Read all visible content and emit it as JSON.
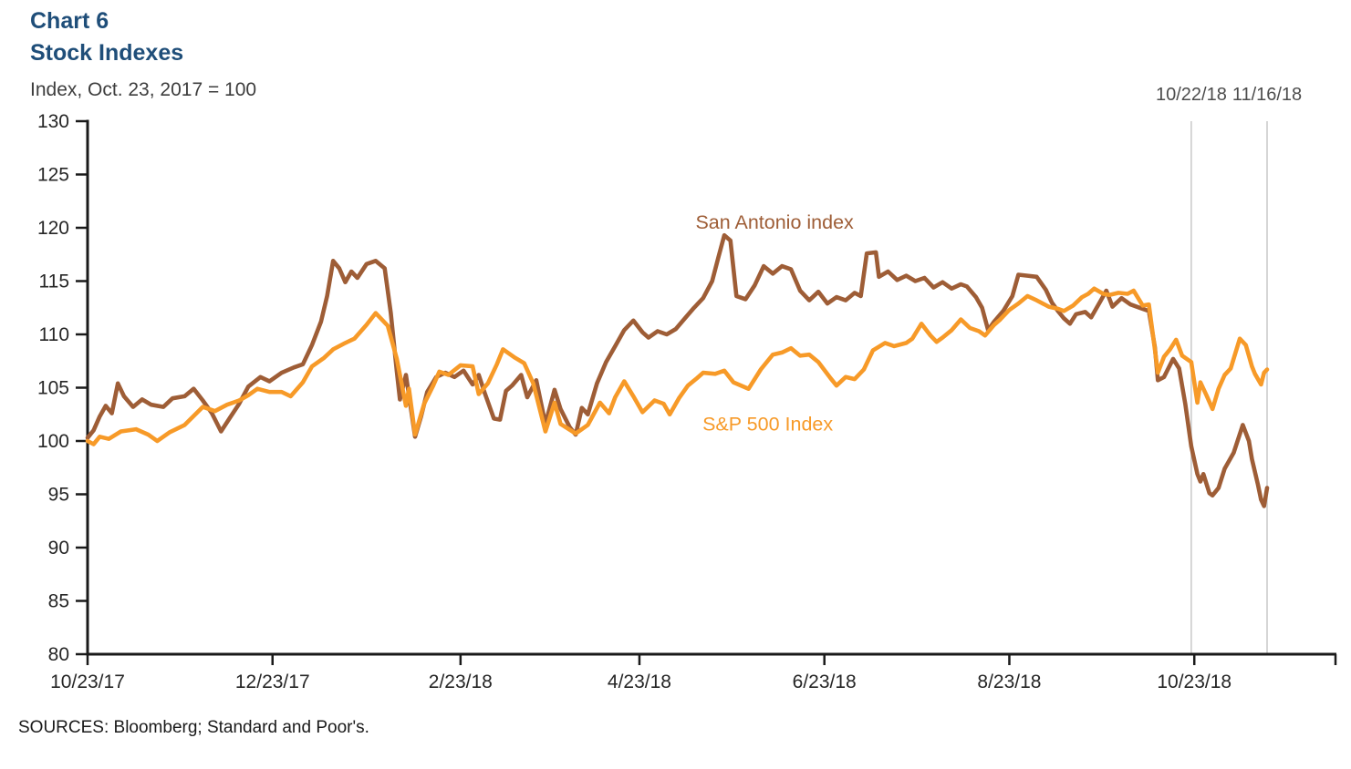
{
  "header": {
    "title_line1": "Chart 6",
    "title_line2": "Stock Indexes",
    "subtitle": "Index, Oct. 23, 2017 = 100",
    "title_color": "#1F4E79"
  },
  "source_line": "SOURCES: Bloomberg; Standard and Poor's.",
  "chart_data": {
    "type": "line",
    "title": "Chart 6 - Stock Indexes",
    "xlabel": "",
    "ylabel": "Index, Oct. 23, 2017 = 100",
    "ylim": [
      80,
      130
    ],
    "y_ticks": [
      80,
      85,
      90,
      95,
      100,
      105,
      110,
      115,
      120,
      125,
      130
    ],
    "grid": false,
    "legend_position": "inline-labels",
    "x_domain_days": [
      0,
      389
    ],
    "x_base_date": "10/23/17",
    "x_ticks": [
      {
        "label": "10/23/17",
        "day": 0
      },
      {
        "label": "12/23/17",
        "day": 61
      },
      {
        "label": "2/23/18",
        "day": 123
      },
      {
        "label": "4/23/18",
        "day": 182
      },
      {
        "label": "6/23/18",
        "day": 243
      },
      {
        "label": "8/23/18",
        "day": 304
      },
      {
        "label": "10/23/18",
        "day": 365
      }
    ],
    "reference_lines": [
      {
        "label": "10/22/18",
        "day": 364
      },
      {
        "label": "11/16/18",
        "day": 389
      }
    ],
    "colors": {
      "axis": "#1a1a1a",
      "tick_label": "#262626",
      "ref_line": "#c9c9c9",
      "ref_label": "#4d4d4d"
    },
    "series": [
      {
        "name": "San Antonio index",
        "color": "#9E5D36",
        "label": {
          "text": "San Antonio index",
          "x_day": 200.5,
          "value": 119.9
        },
        "points": [
          [
            0,
            100.3
          ],
          [
            2,
            101
          ],
          [
            4,
            102.3
          ],
          [
            6,
            103.3
          ],
          [
            8,
            102.6
          ],
          [
            10,
            105.4
          ],
          [
            12,
            104.2
          ],
          [
            15,
            103.2
          ],
          [
            18,
            103.9
          ],
          [
            21,
            103.4
          ],
          [
            25,
            103.2
          ],
          [
            28,
            104
          ],
          [
            32,
            104.2
          ],
          [
            35,
            104.9
          ],
          [
            38,
            103.8
          ],
          [
            41,
            102.6
          ],
          [
            44,
            100.9
          ],
          [
            47,
            102.2
          ],
          [
            50,
            103.5
          ],
          [
            53,
            105.1
          ],
          [
            57,
            106
          ],
          [
            60,
            105.6
          ],
          [
            64,
            106.4
          ],
          [
            68,
            106.9
          ],
          [
            71,
            107.2
          ],
          [
            74,
            109
          ],
          [
            77,
            111.2
          ],
          [
            79,
            113.6
          ],
          [
            81,
            116.9
          ],
          [
            83,
            116.2
          ],
          [
            85,
            114.9
          ],
          [
            87,
            115.9
          ],
          [
            89,
            115.3
          ],
          [
            92,
            116.6
          ],
          [
            95,
            116.9
          ],
          [
            98,
            116.2
          ],
          [
            100,
            112
          ],
          [
            102,
            106.5
          ],
          [
            103,
            103.9
          ],
          [
            105,
            106.2
          ],
          [
            108,
            100.4
          ],
          [
            110,
            102.3
          ],
          [
            112,
            104.6
          ],
          [
            115,
            106
          ],
          [
            118,
            106.4
          ],
          [
            121,
            106
          ],
          [
            124,
            106.6
          ],
          [
            127,
            105.3
          ],
          [
            129,
            106.2
          ],
          [
            131,
            104.5
          ],
          [
            134,
            102.1
          ],
          [
            136,
            102
          ],
          [
            138,
            104.7
          ],
          [
            140,
            105.2
          ],
          [
            143,
            106.2
          ],
          [
            145,
            104.1
          ],
          [
            148,
            105.7
          ],
          [
            151,
            101.6
          ],
          [
            154,
            104.8
          ],
          [
            156,
            103
          ],
          [
            159,
            101.3
          ],
          [
            161,
            100.6
          ],
          [
            163,
            103.1
          ],
          [
            165,
            102.5
          ],
          [
            168,
            105.4
          ],
          [
            171,
            107.4
          ],
          [
            174,
            108.9
          ],
          [
            177,
            110.4
          ],
          [
            180,
            111.3
          ],
          [
            183,
            110.2
          ],
          [
            185,
            109.7
          ],
          [
            188,
            110.3
          ],
          [
            191,
            110
          ],
          [
            194,
            110.5
          ],
          [
            197,
            111.5
          ],
          [
            200,
            112.5
          ],
          [
            203,
            113.4
          ],
          [
            206,
            115
          ],
          [
            208,
            117.2
          ],
          [
            210,
            119.3
          ],
          [
            212,
            118.8
          ],
          [
            214,
            113.6
          ],
          [
            217,
            113.3
          ],
          [
            220,
            114.6
          ],
          [
            223,
            116.4
          ],
          [
            226,
            115.7
          ],
          [
            229,
            116.4
          ],
          [
            232,
            116.1
          ],
          [
            235,
            114.1
          ],
          [
            238,
            113.2
          ],
          [
            241,
            114
          ],
          [
            244,
            112.9
          ],
          [
            247,
            113.5
          ],
          [
            250,
            113.2
          ],
          [
            253,
            113.9
          ],
          [
            255,
            113.6
          ],
          [
            257,
            117.6
          ],
          [
            260,
            117.7
          ],
          [
            261,
            115.4
          ],
          [
            264,
            115.9
          ],
          [
            267,
            115.1
          ],
          [
            270,
            115.5
          ],
          [
            273,
            115
          ],
          [
            276,
            115.3
          ],
          [
            279,
            114.4
          ],
          [
            282,
            114.9
          ],
          [
            285,
            114.3
          ],
          [
            288,
            114.7
          ],
          [
            290,
            114.5
          ],
          [
            293,
            113.5
          ],
          [
            295,
            112.5
          ],
          [
            297,
            110.4
          ],
          [
            299,
            111.2
          ],
          [
            302,
            112.2
          ],
          [
            305,
            113.6
          ],
          [
            307,
            115.6
          ],
          [
            310,
            115.5
          ],
          [
            313,
            115.4
          ],
          [
            316,
            114.2
          ],
          [
            318,
            113
          ],
          [
            320,
            112.2
          ],
          [
            322,
            111.5
          ],
          [
            324,
            111
          ],
          [
            326,
            111.9
          ],
          [
            329,
            112.1
          ],
          [
            331,
            111.6
          ],
          [
            334,
            113.1
          ],
          [
            336,
            114.1
          ],
          [
            338,
            112.6
          ],
          [
            341,
            113.4
          ],
          [
            344,
            112.8
          ],
          [
            347,
            112.5
          ],
          [
            350,
            112.2
          ],
          [
            352,
            108.8
          ],
          [
            353,
            105.7
          ],
          [
            355,
            106
          ],
          [
            358,
            107.7
          ],
          [
            360,
            106.8
          ],
          [
            362,
            103.5
          ],
          [
            364,
            99.5
          ],
          [
            366,
            96.9
          ],
          [
            367,
            96.2
          ],
          [
            368,
            96.9
          ],
          [
            370,
            95.1
          ],
          [
            371,
            94.9
          ],
          [
            373,
            95.6
          ],
          [
            375,
            97.4
          ],
          [
            378,
            98.9
          ],
          [
            381,
            101.5
          ],
          [
            383,
            100
          ],
          [
            384,
            98.3
          ],
          [
            386,
            95.9
          ],
          [
            387,
            94.5
          ],
          [
            388,
            93.9
          ],
          [
            389,
            95.6
          ]
        ]
      },
      {
        "name": "S&P 500 Index",
        "color": "#F79A28",
        "label": {
          "text": "S&P 500 Index",
          "x_day": 202.8,
          "value": 101.0
        },
        "points": [
          [
            0,
            100
          ],
          [
            2,
            99.7
          ],
          [
            4,
            100.4
          ],
          [
            7,
            100.2
          ],
          [
            11,
            100.9
          ],
          [
            16,
            101.1
          ],
          [
            20,
            100.6
          ],
          [
            23,
            100
          ],
          [
            27,
            100.8
          ],
          [
            32,
            101.5
          ],
          [
            38,
            103.2
          ],
          [
            42,
            102.8
          ],
          [
            46,
            103.4
          ],
          [
            50,
            103.8
          ],
          [
            53,
            104.3
          ],
          [
            56,
            104.9
          ],
          [
            60,
            104.6
          ],
          [
            64,
            104.6
          ],
          [
            67,
            104.2
          ],
          [
            71,
            105.5
          ],
          [
            74,
            107
          ],
          [
            78,
            107.8
          ],
          [
            81,
            108.6
          ],
          [
            85,
            109.2
          ],
          [
            88,
            109.6
          ],
          [
            92,
            110.9
          ],
          [
            95,
            112
          ],
          [
            99,
            110.8
          ],
          [
            102,
            107.7
          ],
          [
            105,
            103.3
          ],
          [
            106,
            104.9
          ],
          [
            108,
            100.6
          ],
          [
            111,
            103.5
          ],
          [
            114,
            105.2
          ],
          [
            116,
            106.5
          ],
          [
            119,
            106.2
          ],
          [
            123,
            107.1
          ],
          [
            127,
            107
          ],
          [
            129,
            104.4
          ],
          [
            132,
            105.4
          ],
          [
            135,
            107.2
          ],
          [
            137,
            108.6
          ],
          [
            141,
            107.8
          ],
          [
            144,
            107.3
          ],
          [
            147,
            105.4
          ],
          [
            151,
            100.9
          ],
          [
            154,
            103.6
          ],
          [
            156,
            101.6
          ],
          [
            161,
            100.7
          ],
          [
            165,
            101.5
          ],
          [
            169,
            103.6
          ],
          [
            172,
            102.6
          ],
          [
            174,
            104.1
          ],
          [
            177,
            105.6
          ],
          [
            180,
            104.2
          ],
          [
            183,
            102.7
          ],
          [
            187,
            103.8
          ],
          [
            190,
            103.5
          ],
          [
            192,
            102.5
          ],
          [
            195,
            104
          ],
          [
            198,
            105.2
          ],
          [
            201,
            105.9
          ],
          [
            203,
            106.4
          ],
          [
            207,
            106.3
          ],
          [
            210,
            106.6
          ],
          [
            213,
            105.5
          ],
          [
            218,
            104.9
          ],
          [
            222,
            106.7
          ],
          [
            226,
            108.1
          ],
          [
            229,
            108.3
          ],
          [
            232,
            108.7
          ],
          [
            235,
            108
          ],
          [
            238,
            108.1
          ],
          [
            241,
            107.4
          ],
          [
            245,
            105.9
          ],
          [
            247,
            105.2
          ],
          [
            250,
            106
          ],
          [
            253,
            105.8
          ],
          [
            256,
            106.7
          ],
          [
            259,
            108.5
          ],
          [
            263,
            109.2
          ],
          [
            266,
            108.9
          ],
          [
            270,
            109.2
          ],
          [
            272,
            109.6
          ],
          [
            275,
            111
          ],
          [
            278,
            109.9
          ],
          [
            280,
            109.3
          ],
          [
            282,
            109.7
          ],
          [
            285,
            110.4
          ],
          [
            288,
            111.4
          ],
          [
            291,
            110.6
          ],
          [
            294,
            110.3
          ],
          [
            296,
            109.9
          ],
          [
            299,
            110.9
          ],
          [
            301,
            111.4
          ],
          [
            304,
            112.3
          ],
          [
            307,
            112.9
          ],
          [
            310,
            113.6
          ],
          [
            313,
            113.2
          ],
          [
            317,
            112.6
          ],
          [
            320,
            112.4
          ],
          [
            322,
            112.2
          ],
          [
            325,
            112.7
          ],
          [
            328,
            113.5
          ],
          [
            330,
            113.8
          ],
          [
            332,
            114.3
          ],
          [
            335,
            113.8
          ],
          [
            337,
            113.7
          ],
          [
            340,
            113.9
          ],
          [
            343,
            113.8
          ],
          [
            345,
            114.1
          ],
          [
            348,
            112.7
          ],
          [
            350,
            112.8
          ],
          [
            352,
            108.6
          ],
          [
            353,
            106.4
          ],
          [
            355,
            107.9
          ],
          [
            357,
            108.6
          ],
          [
            359,
            109.5
          ],
          [
            361,
            108
          ],
          [
            364,
            107.4
          ],
          [
            366,
            103.6
          ],
          [
            367,
            105.5
          ],
          [
            369,
            104.3
          ],
          [
            371,
            103
          ],
          [
            373,
            104.9
          ],
          [
            375,
            106.2
          ],
          [
            377,
            106.8
          ],
          [
            380,
            109.6
          ],
          [
            382,
            109
          ],
          [
            384,
            107
          ],
          [
            385,
            106.3
          ],
          [
            387,
            105.3
          ],
          [
            388,
            106.4
          ],
          [
            389,
            106.7
          ]
        ]
      }
    ]
  }
}
